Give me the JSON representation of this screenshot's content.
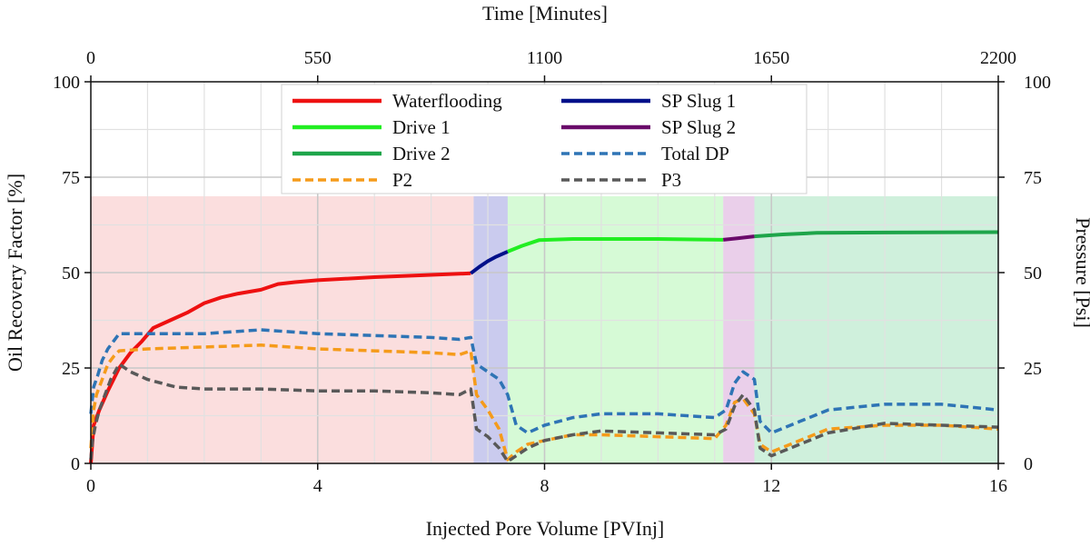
{
  "chart_data": {
    "type": "line",
    "title": "",
    "xlabel": "Injected Pore Volume  [PVInj]",
    "ylabel": "Oil Recovery Factor [%]",
    "y2label": "Pressure [Psi]",
    "x2label": "Time [Minutes]",
    "xlim": [
      0,
      16
    ],
    "ylim": [
      0,
      100
    ],
    "y2lim": [
      0,
      100
    ],
    "x2lim": [
      0,
      2200
    ],
    "x_ticks": [
      "0",
      "4",
      "8",
      "12",
      "16"
    ],
    "y_ticks": [
      "0",
      "25",
      "50",
      "75",
      "100"
    ],
    "y2_ticks": [
      "0",
      "25",
      "50",
      "75",
      "100"
    ],
    "x2_ticks": [
      "0",
      "550",
      "1100",
      "1650",
      "2200"
    ],
    "grid": true,
    "legend_position": "top-center",
    "phases": [
      {
        "name": "Waterflooding",
        "x0": 0,
        "x1": 6.75,
        "color": "#f7c3c3"
      },
      {
        "name": "SP Slug 1",
        "x0": 6.75,
        "x1": 7.35,
        "color": "#9ea0e0"
      },
      {
        "name": "Drive 1",
        "x0": 7.35,
        "x1": 11.15,
        "color": "#b5f5b5"
      },
      {
        "name": "SP Slug 2",
        "x0": 11.15,
        "x1": 11.7,
        "color": "#d8a8d8"
      },
      {
        "name": "Drive 2",
        "x0": 11.7,
        "x1": 16,
        "color": "#a8e4bf"
      }
    ],
    "phase_band_top": 70,
    "series": [
      {
        "name": "Waterflooding",
        "style": "solid",
        "color": "#ee1111",
        "axis": "left",
        "x": [
          0,
          0.05,
          0.15,
          0.3,
          0.5,
          0.7,
          0.9,
          1.1,
          1.4,
          1.7,
          2.0,
          2.3,
          2.6,
          3.0,
          3.3,
          3.6,
          4.0,
          5.0,
          6.0,
          6.7
        ],
        "y": [
          0,
          10,
          14,
          19,
          25,
          29,
          32,
          35.5,
          37.5,
          39.5,
          42,
          43.5,
          44.5,
          45.5,
          47,
          47.5,
          48,
          48.8,
          49.4,
          49.8
        ]
      },
      {
        "name": "SP Slug 1",
        "style": "solid",
        "color": "#00108a",
        "axis": "left",
        "x": [
          6.7,
          6.85,
          7.0,
          7.15,
          7.35
        ],
        "y": [
          49.8,
          51.5,
          53,
          54.2,
          55.5
        ]
      },
      {
        "name": "Drive 1",
        "style": "solid",
        "color": "#22ee22",
        "axis": "left",
        "x": [
          7.35,
          7.6,
          7.9,
          8.5,
          10,
          11.15
        ],
        "y": [
          55.5,
          57,
          58.5,
          58.8,
          58.8,
          58.6
        ]
      },
      {
        "name": "SP Slug 2",
        "style": "solid",
        "color": "#6a0a6a",
        "axis": "left",
        "x": [
          11.15,
          11.4,
          11.7
        ],
        "y": [
          58.6,
          59,
          59.5
        ]
      },
      {
        "name": "Drive 2",
        "style": "solid",
        "color": "#1ea54a",
        "axis": "left",
        "x": [
          11.7,
          12.2,
          12.8,
          14,
          16
        ],
        "y": [
          59.5,
          60,
          60.4,
          60.5,
          60.6
        ]
      },
      {
        "name": "Total DP",
        "style": "dashed",
        "color": "#2e74b5",
        "axis": "right",
        "x": [
          0,
          0.05,
          0.12,
          0.2,
          0.3,
          0.4,
          0.5,
          1,
          2,
          3,
          4,
          5,
          6,
          6.5,
          6.7,
          6.8,
          7.0,
          7.2,
          7.35,
          7.5,
          7.7,
          8,
          8.5,
          9,
          10,
          11,
          11.2,
          11.35,
          11.5,
          11.7,
          11.8,
          12,
          12.5,
          13,
          14,
          15,
          16
        ],
        "y": [
          13,
          20,
          23,
          27,
          30,
          32,
          34,
          34,
          34,
          35,
          34,
          33.5,
          33,
          32.5,
          33,
          26,
          24,
          22,
          18,
          10,
          8,
          10,
          12,
          13,
          13,
          12,
          14,
          21,
          24,
          22,
          11,
          8,
          11,
          14,
          15.5,
          15.5,
          14
        ]
      },
      {
        "name": "P2",
        "style": "dashed",
        "color": "#f59b1a",
        "axis": "right",
        "x": [
          0,
          0.05,
          0.1,
          0.2,
          0.3,
          0.4,
          0.5,
          1,
          2,
          3,
          4,
          5,
          6,
          6.5,
          6.7,
          6.8,
          7.0,
          7.2,
          7.35,
          7.5,
          7.7,
          8,
          8.5,
          9,
          10,
          11,
          11.2,
          11.35,
          11.5,
          11.7,
          11.8,
          12,
          12.5,
          13,
          14,
          15,
          16
        ],
        "y": [
          4,
          14,
          18,
          22,
          26,
          28,
          29.5,
          30,
          30.5,
          31,
          30,
          29.5,
          29,
          28.5,
          29.5,
          18,
          14,
          9,
          1,
          3,
          5,
          6,
          7.5,
          7.5,
          7,
          6.5,
          10,
          16,
          17,
          13,
          5,
          3,
          6,
          9,
          10,
          10,
          9
        ]
      },
      {
        "name": "P3",
        "style": "dashed",
        "color": "#595959",
        "axis": "right",
        "x": [
          0,
          0.03,
          0.08,
          0.15,
          0.25,
          0.35,
          0.5,
          0.7,
          1,
          1.5,
          2,
          3,
          4,
          5,
          6,
          6.5,
          6.7,
          6.8,
          7.0,
          7.2,
          7.35,
          7.5,
          7.7,
          8,
          8.5,
          9,
          10,
          11,
          11.2,
          11.35,
          11.5,
          11.7,
          11.8,
          12,
          12.5,
          13,
          14,
          15,
          16
        ],
        "y": [
          1,
          6,
          10,
          14,
          18,
          22,
          26,
          24,
          22,
          20,
          19.5,
          19.5,
          19,
          19,
          18.5,
          18,
          19.5,
          9,
          7,
          4,
          0.5,
          2,
          4,
          6,
          7.5,
          8.5,
          8,
          7.5,
          9,
          15,
          18,
          14,
          4,
          2,
          5,
          8,
          10.5,
          10,
          9.5
        ]
      }
    ],
    "legend": [
      {
        "name": "Waterflooding",
        "style": "solid",
        "color": "#ee1111"
      },
      {
        "name": "SP Slug 1",
        "style": "solid",
        "color": "#00108a"
      },
      {
        "name": "Drive 1",
        "style": "solid",
        "color": "#22ee22"
      },
      {
        "name": "SP Slug 2",
        "style": "solid",
        "color": "#6a0a6a"
      },
      {
        "name": "Drive 2",
        "style": "solid",
        "color": "#1ea54a"
      },
      {
        "name": "Total DP",
        "style": "dashed",
        "color": "#2e74b5"
      },
      {
        "name": "P2",
        "style": "dashed",
        "color": "#f59b1a"
      },
      {
        "name": "P3",
        "style": "dashed",
        "color": "#595959"
      }
    ]
  }
}
